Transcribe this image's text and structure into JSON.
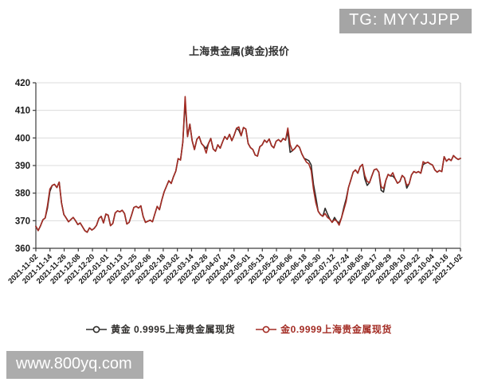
{
  "badge": {
    "text": "TG: MYYJJPP",
    "bg": "#a5a5a5",
    "fg": "#ffffff"
  },
  "watermark": {
    "text": "www.800yq.com",
    "bg": "#acacac",
    "fg": "#ffffff"
  },
  "chart_data": {
    "type": "line",
    "title": "上海贵金属(黄金)报价",
    "ylim": [
      360,
      420
    ],
    "y_ticks": [
      360,
      370,
      380,
      390,
      400,
      410,
      420
    ],
    "grid": true,
    "legend_position": "bottom",
    "x_range": [
      "2021-11-02",
      "2022-11-02"
    ],
    "x_tick_labels": [
      "2021-11-02",
      "2021-11-14",
      "2021-11-26",
      "2021-12-08",
      "2021-12-20",
      "2022-01-01",
      "2022-01-13",
      "2022-01-25",
      "2022-02-06",
      "2022-02-18",
      "2022-03-02",
      "2022-03-14",
      "2022-03-26",
      "2022-04-07",
      "2022-04-19",
      "2022-05-01",
      "2022-05-13",
      "2022-05-25",
      "2022-06-06",
      "2022-06-18",
      "2022-06-30",
      "2022-07-12",
      "2022-07-24",
      "2022-08-05",
      "2022-08-17",
      "2022-08-29",
      "2022-09-10",
      "2022-09-22",
      "2022-10-04",
      "2022-10-16",
      "2022-11-02"
    ],
    "series": [
      {
        "name": "黄金  0.9995上海贵金属现货",
        "color": "#2f2d2b",
        "values": [
          368,
          366.4,
          368.2,
          370.3,
          371,
          374.6,
          380.6,
          382.8,
          383.2,
          382,
          384,
          376.5,
          372.3,
          371,
          369.6,
          370.4,
          371.2,
          370,
          368.6,
          369.2,
          367.8,
          366.4,
          365.8,
          367.4,
          366.6,
          367.2,
          368.3,
          370.8,
          371.6,
          369.2,
          372.4,
          372,
          368.2,
          369,
          372.8,
          373.6,
          373.2,
          373.8,
          372.6,
          368.8,
          369.4,
          372,
          374.8,
          375.2,
          374.6,
          375.4,
          371.5,
          369.4,
          369.8,
          370.2,
          369.6,
          372.5,
          375.2,
          374,
          377.5,
          380.5,
          382.5,
          384.5,
          383.5,
          386,
          388,
          392.5,
          392,
          398.5,
          413,
          400.5,
          405,
          399,
          395.8,
          399.5,
          400.5,
          398,
          397,
          396.2,
          398,
          399.8,
          396,
          395.2,
          397.5,
          396.3,
          398.5,
          400.5,
          399.5,
          401.3,
          399,
          401,
          403.5,
          402.8,
          400.8,
          403.8,
          403.2,
          398,
          396.5,
          395.8,
          393.8,
          393.4,
          396.8,
          397.5,
          399.2,
          398.4,
          399.6,
          397.2,
          396.4,
          398.8,
          399.4,
          398.6,
          399.8,
          399.2,
          402.2,
          394.8,
          395.4,
          396.2,
          397.4,
          396.6,
          394.2,
          392.6,
          392.2,
          391.8,
          390.2,
          383.2,
          378.6,
          373.4,
          372.2,
          371.6,
          374.5,
          372.4,
          370.6,
          369.4,
          371.2,
          369.8,
          369.2,
          371,
          374.8,
          377.9,
          382,
          384.8,
          387.6,
          388.4,
          387.2,
          389.6,
          390.4,
          385.2,
          382.8,
          383.8,
          386.2,
          388.4,
          388.8,
          387.6,
          381,
          380.4,
          384.6,
          386.8,
          386.2,
          386.2,
          385.2,
          383.6,
          384.2,
          386.4,
          385.6,
          381.8,
          383.4,
          386.6,
          387.8,
          387.4,
          387.8,
          387.2,
          390.4,
          390.8,
          391.2,
          390.6,
          390.2,
          388.4,
          387.6,
          388.2,
          387.8,
          393.2,
          391.6,
          392.4,
          391.8,
          393.6,
          392.8,
          392.2,
          392.6
        ]
      },
      {
        "name": "金0.9999上海贵金属现货",
        "color": "#a32c24",
        "values": [
          368,
          366.4,
          368.2,
          370.3,
          371,
          375.5,
          381.5,
          382.8,
          383.2,
          382,
          384,
          376.5,
          372.3,
          371,
          369.6,
          370.4,
          371.2,
          370,
          368.6,
          369.2,
          367.8,
          366.4,
          365.8,
          367.4,
          366.6,
          367.2,
          368.3,
          370.8,
          371.6,
          369.2,
          372.4,
          372,
          368.2,
          369,
          372.8,
          373.6,
          373.2,
          373.8,
          372.6,
          368.8,
          369.4,
          372,
          374.8,
          375.2,
          374.6,
          375.4,
          371.5,
          369.4,
          369.8,
          370.2,
          369.6,
          372.5,
          375.2,
          374,
          377.5,
          380.5,
          382.5,
          384.5,
          383.5,
          386,
          388,
          392.5,
          392,
          398.5,
          415,
          400.5,
          405,
          399,
          395.8,
          399.5,
          400.5,
          398,
          397,
          394.5,
          398,
          399.8,
          396,
          395.2,
          397.5,
          396.3,
          398.5,
          400.5,
          399.5,
          401.3,
          399,
          401,
          403.5,
          404,
          400.8,
          403.8,
          403.2,
          398,
          396.5,
          395.8,
          393.8,
          393.4,
          396.8,
          397.5,
          399.2,
          398.4,
          399.6,
          397.2,
          396.4,
          398.8,
          399.4,
          398.6,
          399.8,
          399.2,
          403.6,
          397.6,
          395.4,
          396.2,
          397.4,
          396.6,
          394.2,
          392.6,
          391.2,
          390.6,
          388.2,
          381.4,
          376.6,
          373.4,
          372.2,
          371.6,
          372.6,
          371.2,
          370.6,
          369.4,
          370.4,
          369.8,
          368.4,
          371,
          374,
          377,
          382,
          384.8,
          387.6,
          388.4,
          387.2,
          389.6,
          390.4,
          386.4,
          384.2,
          383.8,
          386.2,
          388.4,
          388.8,
          387.6,
          382.4,
          381.6,
          384.6,
          386.8,
          386.2,
          387.4,
          385.2,
          383.6,
          384.2,
          386.4,
          385.6,
          382.8,
          383.4,
          386.6,
          387.8,
          387.4,
          387.8,
          387.2,
          391.4,
          390.8,
          391.2,
          390.6,
          390.2,
          388.4,
          387.6,
          388.2,
          387.8,
          393.2,
          391.6,
          392.4,
          391.8,
          393.6,
          392.8,
          392.2,
          392.6
        ]
      }
    ]
  }
}
